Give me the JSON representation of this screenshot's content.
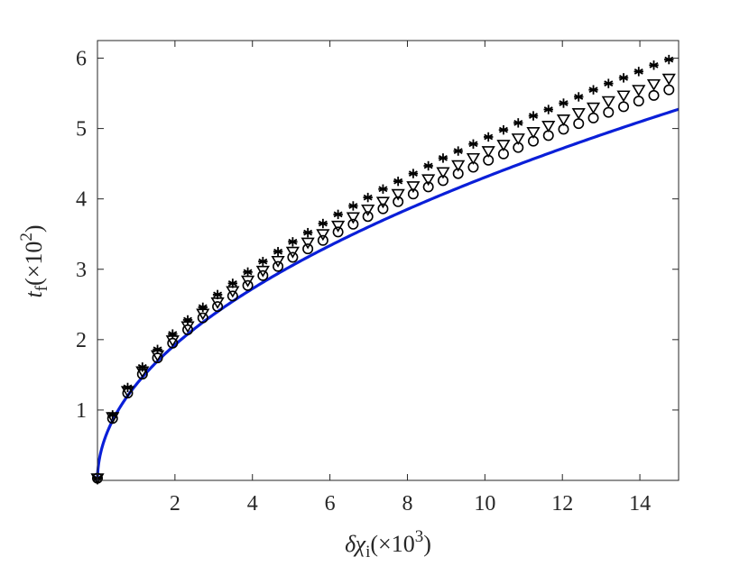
{
  "chart_data": {
    "type": "line",
    "title": "",
    "xlabel": {
      "prefix": "δχ",
      "sub": "i",
      "paren_open": "(×10",
      "sup": "3",
      "paren_close": ")"
    },
    "ylabel": {
      "prefix": "t",
      "sub": "f",
      "paren_open": "(×10",
      "sup": "2",
      "paren_close": ")"
    },
    "xlim": [
      0,
      15
    ],
    "ylim": [
      0,
      6.25
    ],
    "xticks": [
      2,
      4,
      6,
      8,
      10,
      12,
      14
    ],
    "yticks": [
      1,
      2,
      3,
      4,
      5,
      6
    ],
    "grid": false,
    "legend": "none",
    "x_markers": [
      0,
      0.39,
      0.78,
      1.16,
      1.55,
      1.94,
      2.33,
      2.72,
      3.1,
      3.49,
      3.88,
      4.27,
      4.66,
      5.04,
      5.43,
      5.82,
      6.21,
      6.6,
      6.98,
      7.37,
      7.76,
      8.15,
      8.54,
      8.92,
      9.31,
      9.7,
      10.09,
      10.48,
      10.86,
      11.25,
      11.64,
      12.03,
      12.42,
      12.8,
      13.19,
      13.58,
      13.97,
      14.36,
      14.75
    ],
    "series": [
      {
        "marker": "line",
        "color": "#0a1fd8",
        "formula": "1.3617 * x^0.5"
      },
      {
        "marker": "circle",
        "color": "#000000",
        "values": [
          0.03,
          0.88,
          1.24,
          1.51,
          1.74,
          1.95,
          2.14,
          2.31,
          2.47,
          2.62,
          2.77,
          2.91,
          3.04,
          3.17,
          3.29,
          3.41,
          3.53,
          3.64,
          3.75,
          3.86,
          3.96,
          4.07,
          4.17,
          4.26,
          4.36,
          4.45,
          4.55,
          4.64,
          4.73,
          4.82,
          4.9,
          4.99,
          5.07,
          5.15,
          5.23,
          5.31,
          5.39,
          5.47,
          5.55
        ]
      },
      {
        "marker": "triangle-down",
        "color": "#000000",
        "values": [
          0.03,
          0.9,
          1.27,
          1.55,
          1.78,
          1.99,
          2.19,
          2.37,
          2.53,
          2.69,
          2.84,
          2.98,
          3.12,
          3.25,
          3.38,
          3.5,
          3.62,
          3.74,
          3.85,
          3.96,
          4.07,
          4.18,
          4.28,
          4.38,
          4.48,
          4.58,
          4.68,
          4.77,
          4.86,
          4.95,
          5.04,
          5.13,
          5.22,
          5.3,
          5.39,
          5.47,
          5.55,
          5.63,
          5.71
        ]
      },
      {
        "marker": "asterisk",
        "color": "#000000",
        "values": [
          0.03,
          0.93,
          1.32,
          1.61,
          1.86,
          2.08,
          2.28,
          2.46,
          2.64,
          2.8,
          2.96,
          3.11,
          3.25,
          3.39,
          3.52,
          3.65,
          3.78,
          3.9,
          4.02,
          4.14,
          4.25,
          4.36,
          4.47,
          4.58,
          4.68,
          4.78,
          4.88,
          4.98,
          5.08,
          5.18,
          5.27,
          5.36,
          5.45,
          5.55,
          5.64,
          5.72,
          5.81,
          5.9,
          5.98
        ]
      }
    ]
  }
}
